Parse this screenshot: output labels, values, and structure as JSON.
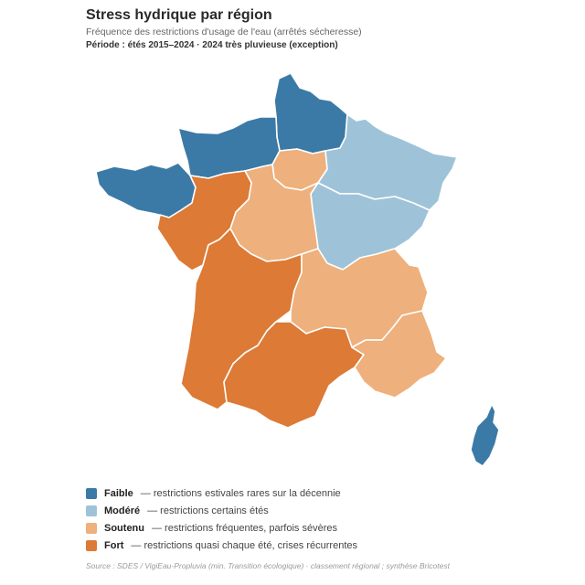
{
  "header": {
    "title": "Stress hydrique par région",
    "subtitle": "Fréquence des restrictions d'usage de l'eau (arrêtés sécheresse)",
    "period": "Période : étés 2015–2024 · 2024 très pluvieuse (exception)"
  },
  "colors": {
    "faible": "#3b7aa6",
    "modere": "#9ec3d8",
    "soutenu": "#eeb07c",
    "fort": "#dc7a36"
  },
  "regions": [
    {
      "name": "Hauts-de-France",
      "level": "faible"
    },
    {
      "name": "Normandie",
      "level": "faible"
    },
    {
      "name": "Bretagne",
      "level": "faible"
    },
    {
      "name": "Corse",
      "level": "faible"
    },
    {
      "name": "Grand Est",
      "level": "modere"
    },
    {
      "name": "Bourgogne-Franche-Comté",
      "level": "modere"
    },
    {
      "name": "Île-de-France",
      "level": "soutenu"
    },
    {
      "name": "Centre-Val de Loire",
      "level": "soutenu"
    },
    {
      "name": "Auvergne-Rhône-Alpes",
      "level": "soutenu"
    },
    {
      "name": "Provence-Alpes-Côte d'Azur",
      "level": "soutenu"
    },
    {
      "name": "Pays de la Loire",
      "level": "fort"
    },
    {
      "name": "Nouvelle-Aquitaine",
      "level": "fort"
    },
    {
      "name": "Occitanie",
      "level": "fort"
    }
  ],
  "legend": [
    {
      "key": "faible",
      "name": "Faible",
      "desc": "— restrictions estivales rares sur la décennie"
    },
    {
      "key": "modere",
      "name": "Modéré",
      "desc": "— restrictions certains étés"
    },
    {
      "key": "soutenu",
      "name": "Soutenu",
      "desc": "— restrictions fréquentes, parfois sévères"
    },
    {
      "key": "fort",
      "name": "Fort",
      "desc": "— restrictions quasi chaque été, crises récurrentes"
    }
  ],
  "source": "Source : SDES / VigiEau-Propluvia (min. Transition écologique) · classement régional ; synthèse Bricotest"
}
